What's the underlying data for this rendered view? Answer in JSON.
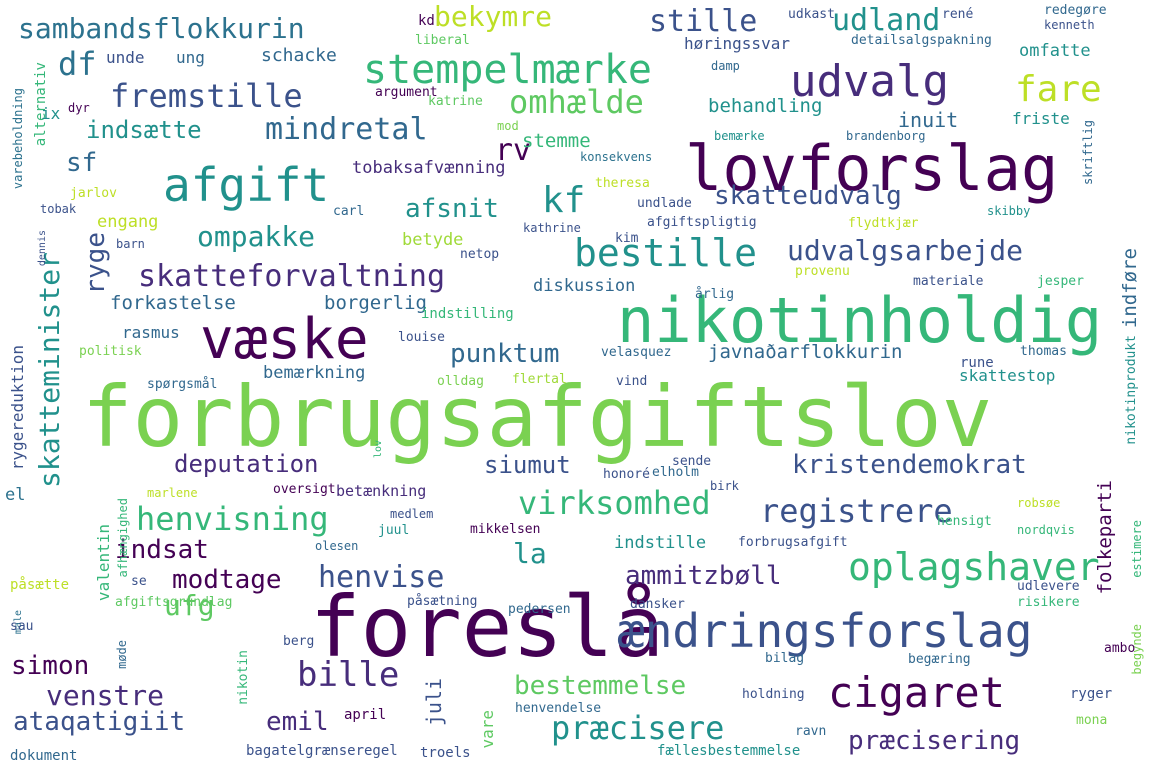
{
  "words": [
    {
      "text": "forbrugsafgiftslov",
      "color": "#7ad151"
    },
    {
      "text": "foreslå",
      "color": "#440154"
    },
    {
      "text": "nikotinholdig",
      "color": "#35b779"
    },
    {
      "text": "lovforslag",
      "color": "#440154"
    },
    {
      "text": "ændringsforslag",
      "color": "#3b528b"
    },
    {
      "text": "væske",
      "color": "#440154"
    },
    {
      "text": "cigaret",
      "color": "#440154"
    },
    {
      "text": "afgift",
      "color": "#21918c"
    },
    {
      "text": "oplagshaver",
      "color": "#35b779"
    },
    {
      "text": "stempelmærke",
      "color": "#35b779"
    },
    {
      "text": "udvalg",
      "color": "#472d7b"
    },
    {
      "text": "bestille",
      "color": "#21918c"
    },
    {
      "text": "virksomhed",
      "color": "#35b779"
    },
    {
      "text": "henvisning",
      "color": "#35b779"
    },
    {
      "text": "registrere",
      "color": "#3b528b"
    },
    {
      "text": "præcisere",
      "color": "#21918c"
    },
    {
      "text": "fremstille",
      "color": "#3b528b"
    },
    {
      "text": "mindretal",
      "color": "#31688e"
    },
    {
      "text": "skatteforvaltning",
      "color": "#472d7b"
    },
    {
      "text": "udvalgsarbejde",
      "color": "#3b528b"
    },
    {
      "text": "omhælde",
      "color": "#5ec962"
    },
    {
      "text": "sambandsflokkurin",
      "color": "#2c728e"
    },
    {
      "text": "kristendemokrat",
      "color": "#3b528b"
    },
    {
      "text": "deputation",
      "color": "#472d7b"
    },
    {
      "text": "ompakke",
      "color": "#21918c"
    },
    {
      "text": "skatteminister",
      "color": "#21918c"
    },
    {
      "text": "venstre",
      "color": "#472d7b"
    },
    {
      "text": "bille",
      "color": "#472d7b"
    },
    {
      "text": "ammitzbøll",
      "color": "#472d7b"
    },
    {
      "text": "fare",
      "color": "#bddf26"
    },
    {
      "text": "udland",
      "color": "#21918c"
    },
    {
      "text": "stille",
      "color": "#3b528b"
    },
    {
      "text": "henvise",
      "color": "#3b528b"
    },
    {
      "text": "bestemmelse",
      "color": "#5ec962"
    },
    {
      "text": "præcisering",
      "color": "#472d7b"
    },
    {
      "text": "ataqatigiit",
      "color": "#3b528b"
    },
    {
      "text": "emil",
      "color": "#472d7b"
    },
    {
      "text": "indsat",
      "color": "#440154"
    },
    {
      "text": "modtage",
      "color": "#440154"
    },
    {
      "text": "simon",
      "color": "#440154"
    },
    {
      "text": "punktum",
      "color": "#31688e"
    },
    {
      "text": "indsætte",
      "color": "#21918c"
    },
    {
      "text": "afsnit",
      "color": "#21918c"
    },
    {
      "text": "skatteudvalg",
      "color": "#3b528b"
    },
    {
      "text": "siumut",
      "color": "#3b528b"
    },
    {
      "text": "bekymre",
      "color": "#bddf26"
    },
    {
      "text": "kf",
      "color": "#21918c"
    },
    {
      "text": "df",
      "color": "#2c728e"
    },
    {
      "text": "sf",
      "color": "#31688e"
    },
    {
      "text": "rv",
      "color": "#440154"
    },
    {
      "text": "ufg",
      "color": "#5ec962"
    },
    {
      "text": "la",
      "color": "#21918c"
    },
    {
      "text": "ryge",
      "color": "#3b528b"
    },
    {
      "text": "juli",
      "color": "#3b528b"
    },
    {
      "text": "forkastelse",
      "color": "#31688e"
    },
    {
      "text": "borgerlig",
      "color": "#31688e"
    },
    {
      "text": "javnaðarflokkurin",
      "color": "#31688e"
    },
    {
      "text": "inuit",
      "color": "#31688e"
    },
    {
      "text": "behandling",
      "color": "#21918c"
    },
    {
      "text": "stemme",
      "color": "#35b779"
    },
    {
      "text": "tobaksafvænning",
      "color": "#472d7b"
    },
    {
      "text": "diskussion",
      "color": "#31688e"
    },
    {
      "text": "betyde",
      "color": "#a0da39"
    },
    {
      "text": "engang",
      "color": "#bddf26"
    },
    {
      "text": "indstille",
      "color": "#21918c"
    },
    {
      "text": "bemærkning",
      "color": "#31688e"
    },
    {
      "text": "betænkning",
      "color": "#472d7b"
    },
    {
      "text": "skattestop",
      "color": "#21918c"
    },
    {
      "text": "folkeparti",
      "color": "#440154"
    },
    {
      "text": "indføre",
      "color": "#31688e"
    },
    {
      "text": "omfatte",
      "color": "#21918c"
    },
    {
      "text": "friste",
      "color": "#21918c"
    },
    {
      "text": "rasmus",
      "color": "#31688e"
    },
    {
      "text": "schacke",
      "color": "#31688e"
    },
    {
      "text": "unde",
      "color": "#3b528b"
    },
    {
      "text": "ung",
      "color": "#31688e"
    },
    {
      "text": "høringssvar",
      "color": "#3b528b"
    },
    {
      "text": "detailsalgspakning",
      "color": "#31688e"
    },
    {
      "text": "udkast",
      "color": "#3b528b"
    },
    {
      "text": "rené",
      "color": "#3b528b"
    },
    {
      "text": "redegøre",
      "color": "#31688e"
    },
    {
      "text": "kenneth",
      "color": "#3b528b"
    },
    {
      "text": "kd",
      "color": "#440154"
    },
    {
      "text": "liberal",
      "color": "#5ec962"
    },
    {
      "text": "damp",
      "color": "#31688e"
    },
    {
      "text": "argument",
      "color": "#440154"
    },
    {
      "text": "katrine",
      "color": "#5ec962"
    },
    {
      "text": "mod",
      "color": "#7ad151"
    },
    {
      "text": "bemærke",
      "color": "#21918c"
    },
    {
      "text": "brandenborg",
      "color": "#31688e"
    },
    {
      "text": "konsekvens",
      "color": "#2c728e"
    },
    {
      "text": "theresa",
      "color": "#bddf26"
    },
    {
      "text": "undlade",
      "color": "#3b528b"
    },
    {
      "text": "afgiftspligtig",
      "color": "#3b528b"
    },
    {
      "text": "kathrine",
      "color": "#3b528b"
    },
    {
      "text": "kim",
      "color": "#3b528b"
    },
    {
      "text": "flydtkjær",
      "color": "#bddf26"
    },
    {
      "text": "skibby",
      "color": "#21918c"
    },
    {
      "text": "carl",
      "color": "#31688e"
    },
    {
      "text": "barn",
      "color": "#3b528b"
    },
    {
      "text": "netop",
      "color": "#3b528b"
    },
    {
      "text": "provenu",
      "color": "#bddf26"
    },
    {
      "text": "materiale",
      "color": "#3b528b"
    },
    {
      "text": "jesper",
      "color": "#35b779"
    },
    {
      "text": "årlig",
      "color": "#31688e"
    },
    {
      "text": "indstilling",
      "color": "#35b779"
    },
    {
      "text": "louise",
      "color": "#3b528b"
    },
    {
      "text": "velasquez",
      "color": "#31688e"
    },
    {
      "text": "thomas",
      "color": "#31688e"
    },
    {
      "text": "rune",
      "color": "#3b528b"
    },
    {
      "text": "olldag",
      "color": "#7ad151"
    },
    {
      "text": "flertal",
      "color": "#a0da39"
    },
    {
      "text": "vind",
      "color": "#3b528b"
    },
    {
      "text": "spørgsmål",
      "color": "#31688e"
    },
    {
      "text": "politisk",
      "color": "#7ad151"
    },
    {
      "text": "tobak",
      "color": "#3b528b"
    },
    {
      "text": "jarlov",
      "color": "#bddf26"
    },
    {
      "text": "alternativ",
      "color": "#35b779"
    },
    {
      "text": "ix",
      "color": "#21918c"
    },
    {
      "text": "dyr",
      "color": "#440154"
    },
    {
      "text": "varebeholdning",
      "color": "#2c728e"
    },
    {
      "text": "skriftlig",
      "color": "#31688e"
    },
    {
      "text": "nikotinprodukt",
      "color": "#21918c"
    },
    {
      "text": "rygereduktion",
      "color": "#3b528b"
    },
    {
      "text": "dennis",
      "color": "#3b528b"
    },
    {
      "text": "el",
      "color": "#2c728e"
    },
    {
      "text": "marlene",
      "color": "#bddf26"
    },
    {
      "text": "oversigt",
      "color": "#440154"
    },
    {
      "text": "medlem",
      "color": "#3b528b"
    },
    {
      "text": "juul",
      "color": "#21918c"
    },
    {
      "text": "olesen",
      "color": "#31688e"
    },
    {
      "text": "honoré",
      "color": "#3b528b"
    },
    {
      "text": "elholm",
      "color": "#31688e"
    },
    {
      "text": "sende",
      "color": "#3b528b"
    },
    {
      "text": "birk",
      "color": "#3b528b"
    },
    {
      "text": "lov",
      "color": "#35b779"
    },
    {
      "text": "robsøe",
      "color": "#bddf26"
    },
    {
      "text": "hensigt",
      "color": "#35b779"
    },
    {
      "text": "nordqvis",
      "color": "#35b779"
    },
    {
      "text": "estimere",
      "color": "#35b779"
    },
    {
      "text": "mikkelsen",
      "color": "#440154"
    },
    {
      "text": "forbrugsafgift",
      "color": "#3b528b"
    },
    {
      "text": "valentin",
      "color": "#35b779"
    },
    {
      "text": "afhængighed",
      "color": "#35b779"
    },
    {
      "text": "påsætte",
      "color": "#bddf26"
    },
    {
      "text": "se",
      "color": "#3b528b"
    },
    {
      "text": "afgiftsgrundlag",
      "color": "#5ec962"
    },
    {
      "text": "påsætning",
      "color": "#3b528b"
    },
    {
      "text": "pedersen",
      "color": "#31688e"
    },
    {
      "text": "dansker",
      "color": "#3b528b"
    },
    {
      "text": "udlevere",
      "color": "#3b528b"
    },
    {
      "text": "risikere",
      "color": "#35b779"
    },
    {
      "text": "begynde",
      "color": "#7ad151"
    },
    {
      "text": "male",
      "color": "#2c728e"
    },
    {
      "text": "sau",
      "color": "#3b528b"
    },
    {
      "text": "møde",
      "color": "#31688e"
    },
    {
      "text": "berg",
      "color": "#3b528b"
    },
    {
      "text": "nikotin",
      "color": "#35b779"
    },
    {
      "text": "bilag",
      "color": "#31688e"
    },
    {
      "text": "begæring",
      "color": "#31688e"
    },
    {
      "text": "ambo",
      "color": "#440154"
    },
    {
      "text": "april",
      "color": "#440154"
    },
    {
      "text": "holdning",
      "color": "#3b528b"
    },
    {
      "text": "ryger",
      "color": "#3b528b"
    },
    {
      "text": "vare",
      "color": "#5ec962"
    },
    {
      "text": "henvendelse",
      "color": "#31688e"
    },
    {
      "text": "ravn",
      "color": "#31688e"
    },
    {
      "text": "mona",
      "color": "#7ad151"
    },
    {
      "text": "bagatelgrænseregel",
      "color": "#3b528b"
    },
    {
      "text": "troels",
      "color": "#3b528b"
    },
    {
      "text": "fællesbestemmelse",
      "color": "#21918c"
    },
    {
      "text": "dokument",
      "color": "#31688e"
    }
  ]
}
